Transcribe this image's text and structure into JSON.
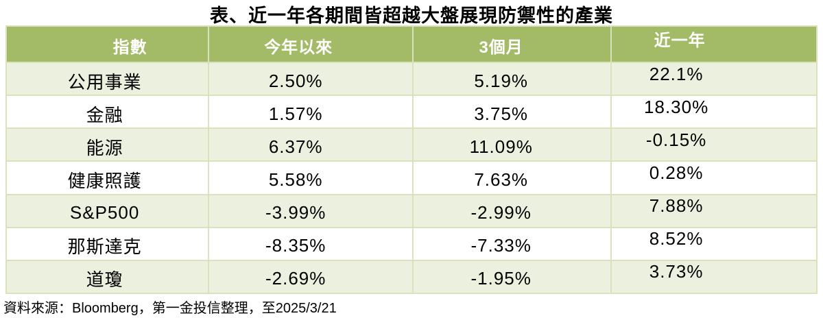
{
  "title": "表、近一年各期間皆超越大盤展現防禦性的產業",
  "table": {
    "columns": [
      "指數",
      "今年以來",
      "3個月",
      "近一年"
    ],
    "rows": [
      [
        "公用事業",
        "2.50%",
        "5.19%",
        "22.1%"
      ],
      [
        "金融",
        "1.57%",
        "3.75%",
        "18.30%"
      ],
      [
        "能源",
        "6.37%",
        "11.09%",
        "-0.15%"
      ],
      [
        "健康照護",
        "5.58%",
        "7.63%",
        "0.28%"
      ],
      [
        "S&P500",
        "-3.99%",
        "-2.99%",
        "7.88%"
      ],
      [
        "那斯達克",
        "-8.35%",
        "-7.33%",
        "8.52%"
      ],
      [
        "道瓊",
        "-2.69%",
        "-1.95%",
        "3.73%"
      ]
    ]
  },
  "footer": {
    "source_note": "資料來源：Bloomberg，第一金投信整理，至2025/3/21"
  },
  "colors": {
    "header_bg": "#a3bb66",
    "header_text": "#ffffff",
    "row_alt_bg": "#ecf1df",
    "row_bg": "#ffffff",
    "grid_line": "#d9e2bd",
    "body_text": "#000000"
  },
  "chart_data": {
    "type": "table",
    "title": "表、近一年各期間皆超越大盤展現防禦性的產業",
    "columns": [
      "指數",
      "今年以來",
      "3個月",
      "近一年"
    ],
    "rows": [
      [
        "公用事業",
        "2.50%",
        "5.19%",
        "22.1%"
      ],
      [
        "金融",
        "1.57%",
        "3.75%",
        "18.30%"
      ],
      [
        "能源",
        "6.37%",
        "11.09%",
        "-0.15%"
      ],
      [
        "健康照護",
        "5.58%",
        "7.63%",
        "0.28%"
      ],
      [
        "S&P500",
        "-3.99%",
        "-2.99%",
        "7.88%"
      ],
      [
        "那斯達克",
        "-8.35%",
        "-7.33%",
        "8.52%"
      ],
      [
        "道瓊",
        "-2.69%",
        "-1.95%",
        "3.73%"
      ]
    ],
    "source": "資料來源：Bloomberg，第一金投信整理，至2025/3/21",
    "layout": {
      "striped_rows": true,
      "stripe_color": "#ecf1df",
      "header_color": "#a3bb66"
    }
  }
}
